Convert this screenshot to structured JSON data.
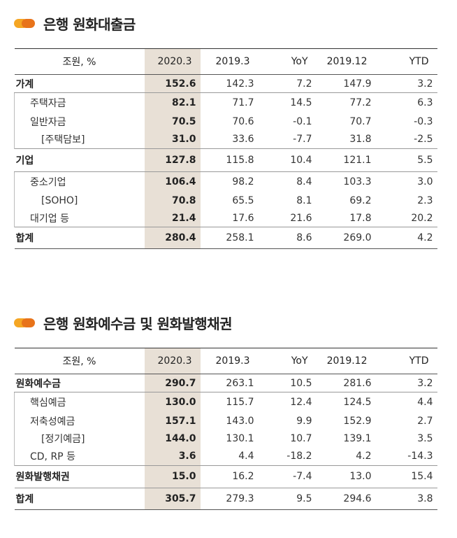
{
  "loans": {
    "title": "은행 원화대출금",
    "headers": [
      "조원, %",
      "2020.3",
      "2019.3",
      "YoY",
      "2019.12",
      "YTD"
    ],
    "rows": [
      {
        "label": "가계",
        "v": [
          "152.6",
          "142.3",
          "7.2",
          "147.9",
          "3.2"
        ]
      },
      {
        "label": "주택자금",
        "v": [
          "82.1",
          "71.7",
          "14.5",
          "77.2",
          "6.3"
        ]
      },
      {
        "label": "일반자금",
        "v": [
          "70.5",
          "70.6",
          "-0.1",
          "70.7",
          "-0.3"
        ]
      },
      {
        "label": "[주택담보]",
        "v": [
          "31.0",
          "33.6",
          "-7.7",
          "31.8",
          "-2.5"
        ]
      },
      {
        "label": "기업",
        "v": [
          "127.8",
          "115.8",
          "10.4",
          "121.1",
          "5.5"
        ]
      },
      {
        "label": "중소기업",
        "v": [
          "106.4",
          "98.2",
          "8.4",
          "103.3",
          "3.0"
        ]
      },
      {
        "label": "[SOHO]",
        "v": [
          "70.8",
          "65.5",
          "8.1",
          "69.2",
          "2.3"
        ]
      },
      {
        "label": "대기업 등",
        "v": [
          "21.4",
          "17.6",
          "21.6",
          "17.8",
          "20.2"
        ]
      },
      {
        "label": "합계",
        "v": [
          "280.4",
          "258.1",
          "8.6",
          "269.0",
          "4.2"
        ]
      }
    ]
  },
  "deposits": {
    "title": "은행 원화예수금 및 원화발행채권",
    "headers": [
      "조원, %",
      "2020.3",
      "2019.3",
      "YoY",
      "2019.12",
      "YTD"
    ],
    "rows": [
      {
        "label": "원화예수금",
        "v": [
          "290.7",
          "263.1",
          "10.5",
          "281.6",
          "3.2"
        ]
      },
      {
        "label": "핵심예금",
        "v": [
          "130.0",
          "115.7",
          "12.4",
          "124.5",
          "4.4"
        ]
      },
      {
        "label": "저축성예금",
        "v": [
          "157.1",
          "143.0",
          "9.9",
          "152.9",
          "2.7"
        ]
      },
      {
        "label": "[정기예금]",
        "v": [
          "144.0",
          "130.1",
          "10.7",
          "139.1",
          "3.5"
        ]
      },
      {
        "label": "CD, RP 등",
        "v": [
          "3.6",
          "4.4",
          "-18.2",
          "4.2",
          "-14.3"
        ]
      },
      {
        "label": "원화발행채권",
        "v": [
          "15.0",
          "16.2",
          "-7.4",
          "13.0",
          "15.4"
        ]
      },
      {
        "label": "합계",
        "v": [
          "305.7",
          "279.3",
          "9.5",
          "294.6",
          "3.8"
        ]
      }
    ]
  }
}
